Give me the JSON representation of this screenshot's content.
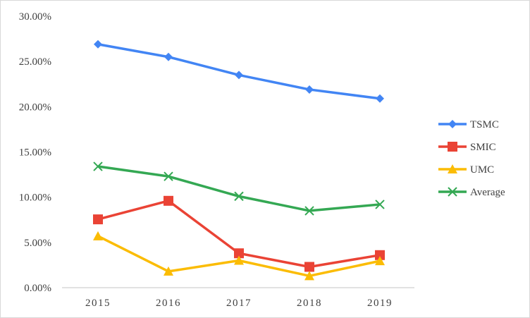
{
  "chart_data": {
    "type": "line",
    "title": "",
    "xlabel": "",
    "ylabel": "",
    "categories": [
      "2015",
      "2016",
      "2017",
      "2018",
      "2019"
    ],
    "ylim": [
      0,
      30
    ],
    "yticks": [
      "0.00%",
      "5.00%",
      "10.00%",
      "15.00%",
      "20.00%",
      "25.00%",
      "30.00%"
    ],
    "grid": false,
    "legend_position": "right",
    "series": [
      {
        "name": "TSMC",
        "color": "#4285f4",
        "marker": "diamond",
        "values": [
          26.9,
          25.5,
          23.5,
          21.9,
          20.9
        ]
      },
      {
        "name": "SMIC",
        "color": "#ea4335",
        "marker": "square",
        "values": [
          7.55,
          9.6,
          3.8,
          2.3,
          3.6
        ]
      },
      {
        "name": "UMC",
        "color": "#fbbc04",
        "marker": "triangle",
        "values": [
          5.7,
          1.8,
          3.0,
          1.3,
          2.95
        ]
      },
      {
        "name": "Average",
        "color": "#34a853",
        "marker": "x",
        "values": [
          13.4,
          12.3,
          10.1,
          8.5,
          9.2
        ]
      }
    ]
  }
}
